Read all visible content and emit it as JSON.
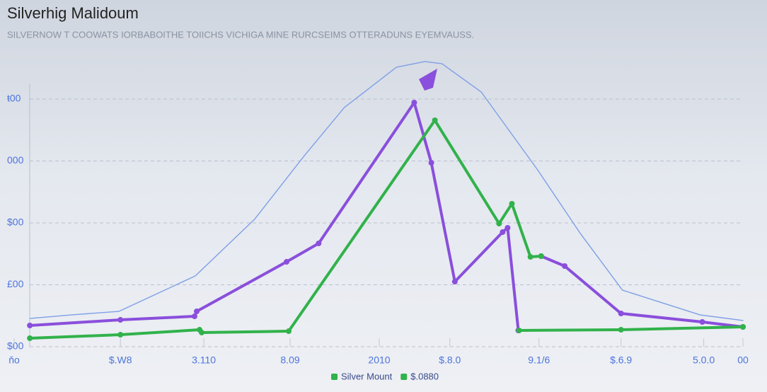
{
  "chart_data": {
    "type": "line",
    "title": "Silverhig Malidoum",
    "subtitle": "SILVERNOW T COOWATS IORBABOITHE TOIICHS VICHIGA MINE RURCSEIMS OTTERADUNS EYEMVAUSS.",
    "xlim": [
      -2.2,
      100
    ],
    "ylim": [
      0,
      470
    ],
    "xticks": [
      {
        "value": -2.2,
        "label": "ňo"
      },
      {
        "value": 12.7,
        "label": "$.W8"
      },
      {
        "value": 24.4,
        "label": "3.110"
      },
      {
        "value": 36.5,
        "label": "8.09"
      },
      {
        "value": 49.0,
        "label": "2010"
      },
      {
        "value": 58.9,
        "label": "$.8.0"
      },
      {
        "value": 71.4,
        "label": "9.1/6"
      },
      {
        "value": 82.9,
        "label": "$.6.9"
      },
      {
        "value": 94.5,
        "label": "5.0.0"
      },
      {
        "value": 100,
        "label": "00"
      }
    ],
    "yticks": [
      {
        "value": 0,
        "label": "$00"
      },
      {
        "value": 100,
        "label": "£00"
      },
      {
        "value": 200,
        "label": "$00"
      },
      {
        "value": 300,
        "label": "000"
      },
      {
        "value": 400,
        "label": "ŧ00"
      }
    ],
    "grid": true,
    "series": [
      {
        "color": "#7f9fe6",
        "x": [
          0,
          5.8,
          12.5,
          23.2,
          31.5,
          38.5,
          44.1,
          51.4,
          55.4,
          57.8,
          63.3,
          71.2,
          77.2,
          83.1,
          94.0,
          100
        ],
        "values": [
          45.7,
          51.4,
          57.1,
          114.3,
          205.7,
          308.6,
          386.3,
          451.4,
          460.6,
          457.1,
          411.4,
          285.7,
          182.9,
          91.4,
          51.4,
          42.3
        ]
      },
      {
        "color": "#8a4fdc",
        "x": [
          0,
          12.7,
          23.1,
          23.4,
          36.0,
          40.5,
          53.9,
          56.3,
          59.6,
          66.3,
          67.0,
          68.5,
          null,
          71.7,
          75.0,
          82.9,
          94.3,
          100
        ],
        "values": [
          34.3,
          43.4,
          49.1,
          57.1,
          137.1,
          166.9,
          394.3,
          297.1,
          105.1,
          185.1,
          192.0,
          26.3,
          null,
          146.3,
          130.3,
          53.7,
          40.0,
          32.0
        ]
      },
      {
        "color": "#31b24b",
        "x": [
          0,
          12.7,
          23.8,
          24.1,
          36.3,
          56.8,
          65.8,
          67.6,
          70.2,
          71.7,
          null,
          68.6,
          82.9,
          100
        ],
        "values": [
          13.7,
          19.4,
          27.4,
          22.9,
          25.1,
          365.7,
          198.9,
          230.9,
          145.1,
          146.3,
          null,
          26.3,
          27.4,
          32.0
        ]
      }
    ],
    "legend_items": [
      {
        "name": "Silver Mount",
        "color": "#31b24b"
      },
      {
        "name": "$.0880",
        "color": "#31b24b"
      }
    ]
  }
}
